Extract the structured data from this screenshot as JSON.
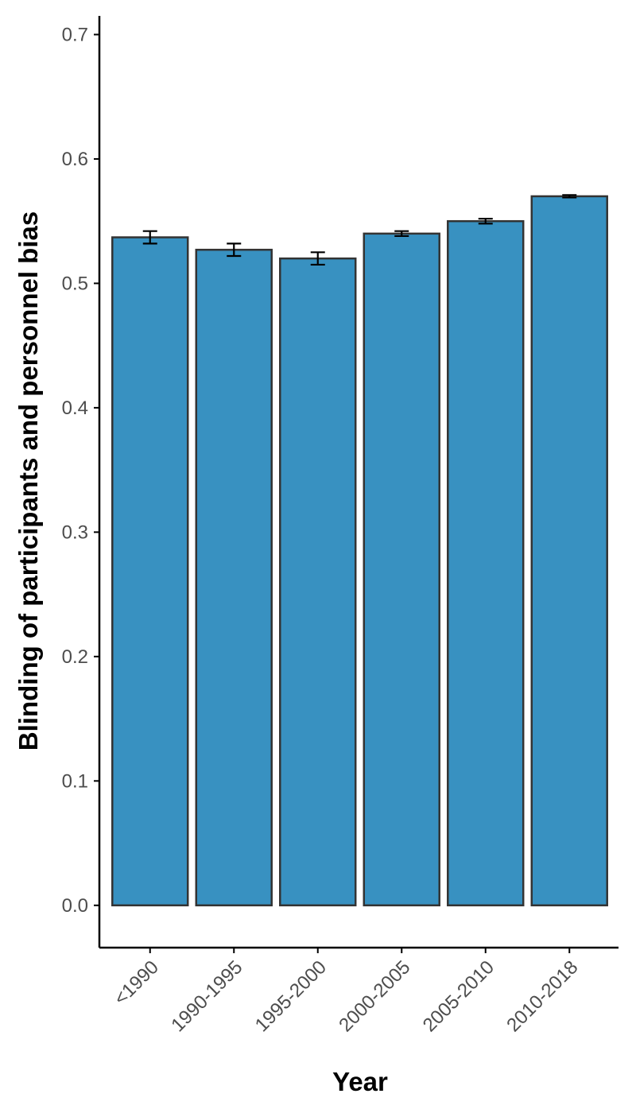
{
  "chart_data": {
    "type": "bar",
    "title": "",
    "xlabel": "Year",
    "ylabel": "Blinding of participants and personnel bias",
    "categories": [
      "<1990",
      "1990-1995",
      "1995-2000",
      "2000-2005",
      "2005-2010",
      "2010-2018"
    ],
    "values": [
      0.537,
      0.527,
      0.52,
      0.54,
      0.55,
      0.57
    ],
    "error_low": [
      0.532,
      0.522,
      0.515,
      0.538,
      0.548,
      0.569
    ],
    "error_high": [
      0.542,
      0.532,
      0.525,
      0.542,
      0.552,
      0.571
    ],
    "ylim": [
      -0.034,
      0.715
    ],
    "yticks": [
      "0.0",
      "0.1",
      "0.2",
      "0.3",
      "0.4",
      "0.5",
      "0.6",
      "0.7"
    ],
    "grid": false,
    "legend": "none"
  },
  "colors": {
    "bar_fill": "#3891c1",
    "bar_stroke": "#333333",
    "axis": "#000000",
    "tick_text": "#4d4d4d",
    "error_bar": "#000000"
  }
}
